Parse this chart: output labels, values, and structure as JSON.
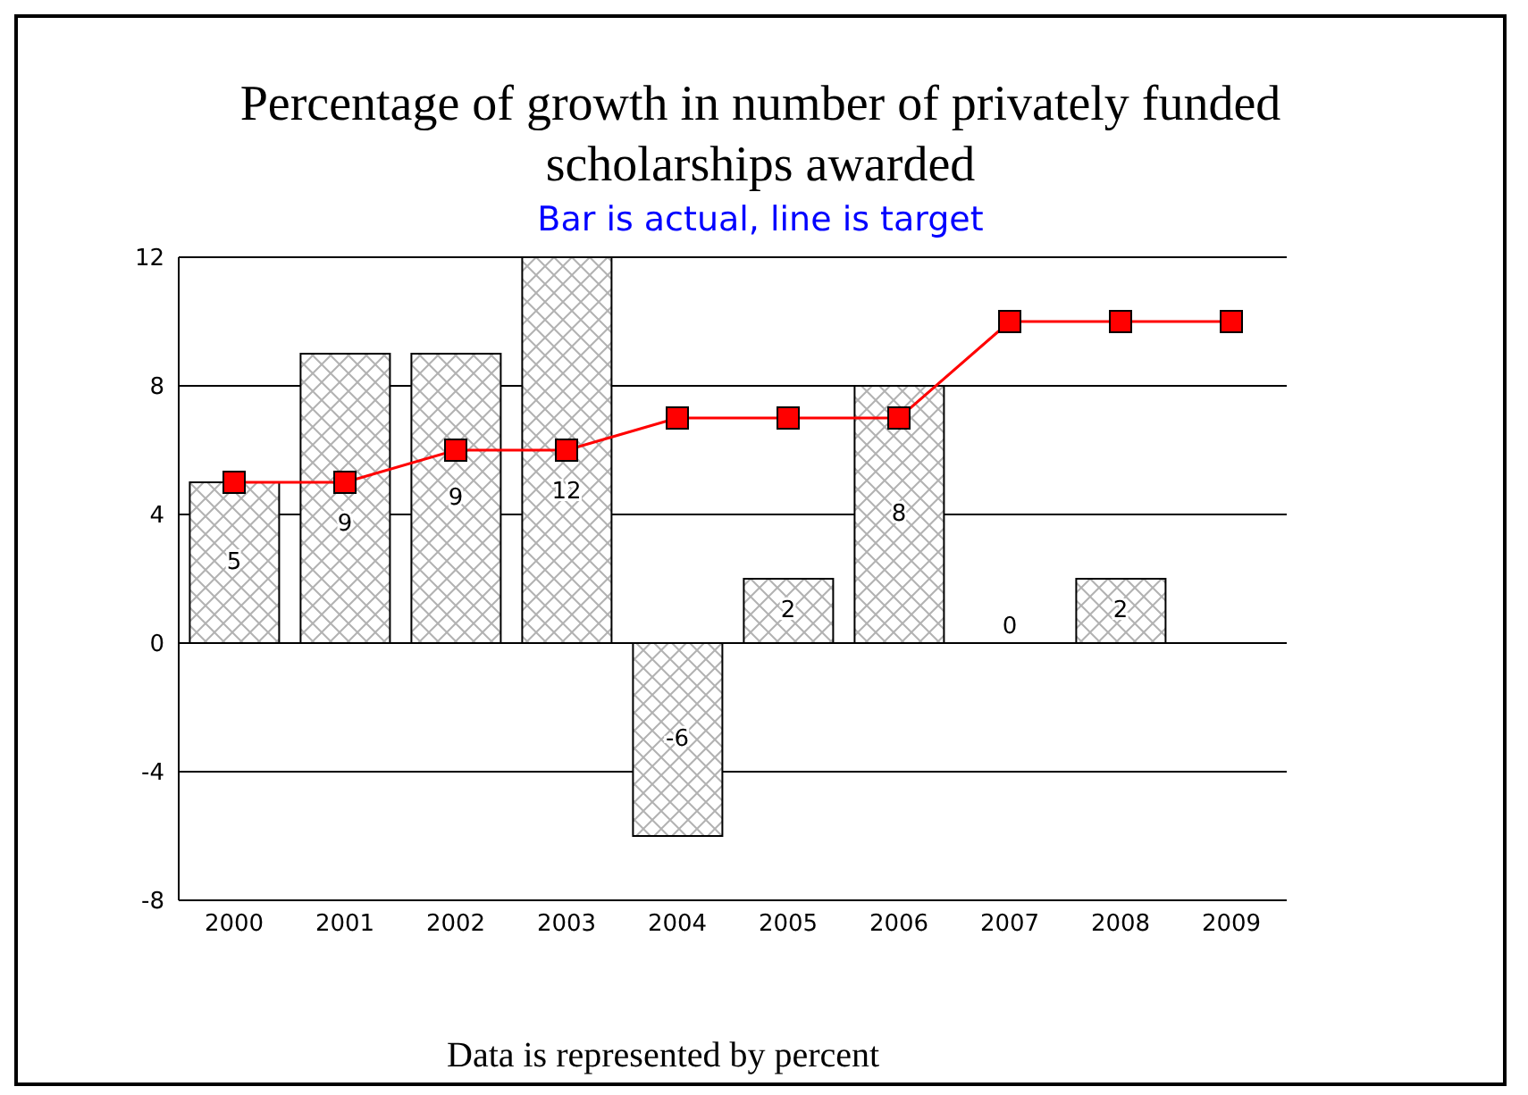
{
  "chart_data": {
    "type": "bar",
    "title": "Percentage of growth in number of privately funded scholarships awarded",
    "subtitle": "Bar is actual, line is target",
    "categories": [
      "2000",
      "2001",
      "2002",
      "2003",
      "2004",
      "2005",
      "2006",
      "2007",
      "2008",
      "2009"
    ],
    "series": [
      {
        "color": "#000000",
        "values": [
          5,
          9,
          9,
          12,
          -6,
          2,
          8,
          0,
          2,
          null
        ],
        "value_labels": [
          "5",
          "9",
          "9",
          "12",
          "-6",
          "2",
          "8",
          "0",
          "2",
          null
        ]
      },
      {
        "type": "line",
        "color": "#ff0000",
        "marker": "square",
        "values": [
          5,
          5,
          6,
          6,
          7,
          7,
          7,
          10,
          10,
          10
        ]
      }
    ],
    "ylim": [
      -8,
      12
    ],
    "yticks": [
      -8,
      -4,
      0,
      4,
      8,
      12
    ],
    "grid": "y",
    "annotations": [
      "Data is represented by percent"
    ]
  }
}
